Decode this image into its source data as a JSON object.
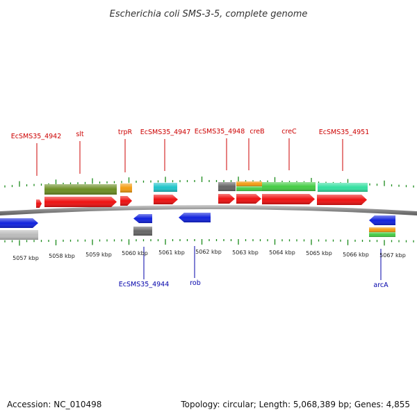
{
  "title": "Escherichia coli SMS-3-5, complete genome",
  "footer": {
    "accession": "Accession: NC_010498",
    "summary": "Topology: circular; Length: 5,068,389 bp; Genes: 4,855"
  },
  "colors": {
    "forward_label": "#cc0000",
    "reverse_label": "#0000aa",
    "tick": "#1a8a1a",
    "backbone": "#8a8a8a"
  },
  "scale_labels": [
    "5057 kbp",
    "5058 kbp",
    "5059 kbp",
    "5060 kbp",
    "5061 kbp",
    "5062 kbp",
    "5063 kbp",
    "5064 kbp",
    "5065 kbp",
    "5066 kbp",
    "5067 kbp"
  ],
  "top_labels": [
    "EcSMS35_4942",
    "slt",
    "trpR",
    "EcSMS35_4947",
    "EcSMS35_4948",
    "creB",
    "creC",
    "EcSMS35_4951"
  ],
  "bottom_labels": [
    "EcSMS35_4944",
    "rob",
    "arcA"
  ],
  "gene_colors": {
    "red": "#ee1111",
    "olive": "#6b8e23",
    "orange": "#f39c12",
    "cyan": "#1fc4c9",
    "gray": "#666666",
    "green": "#44cc44",
    "mint": "#33e0a0",
    "blue": "#1122dd",
    "lightgray": "#bbbbbb"
  }
}
